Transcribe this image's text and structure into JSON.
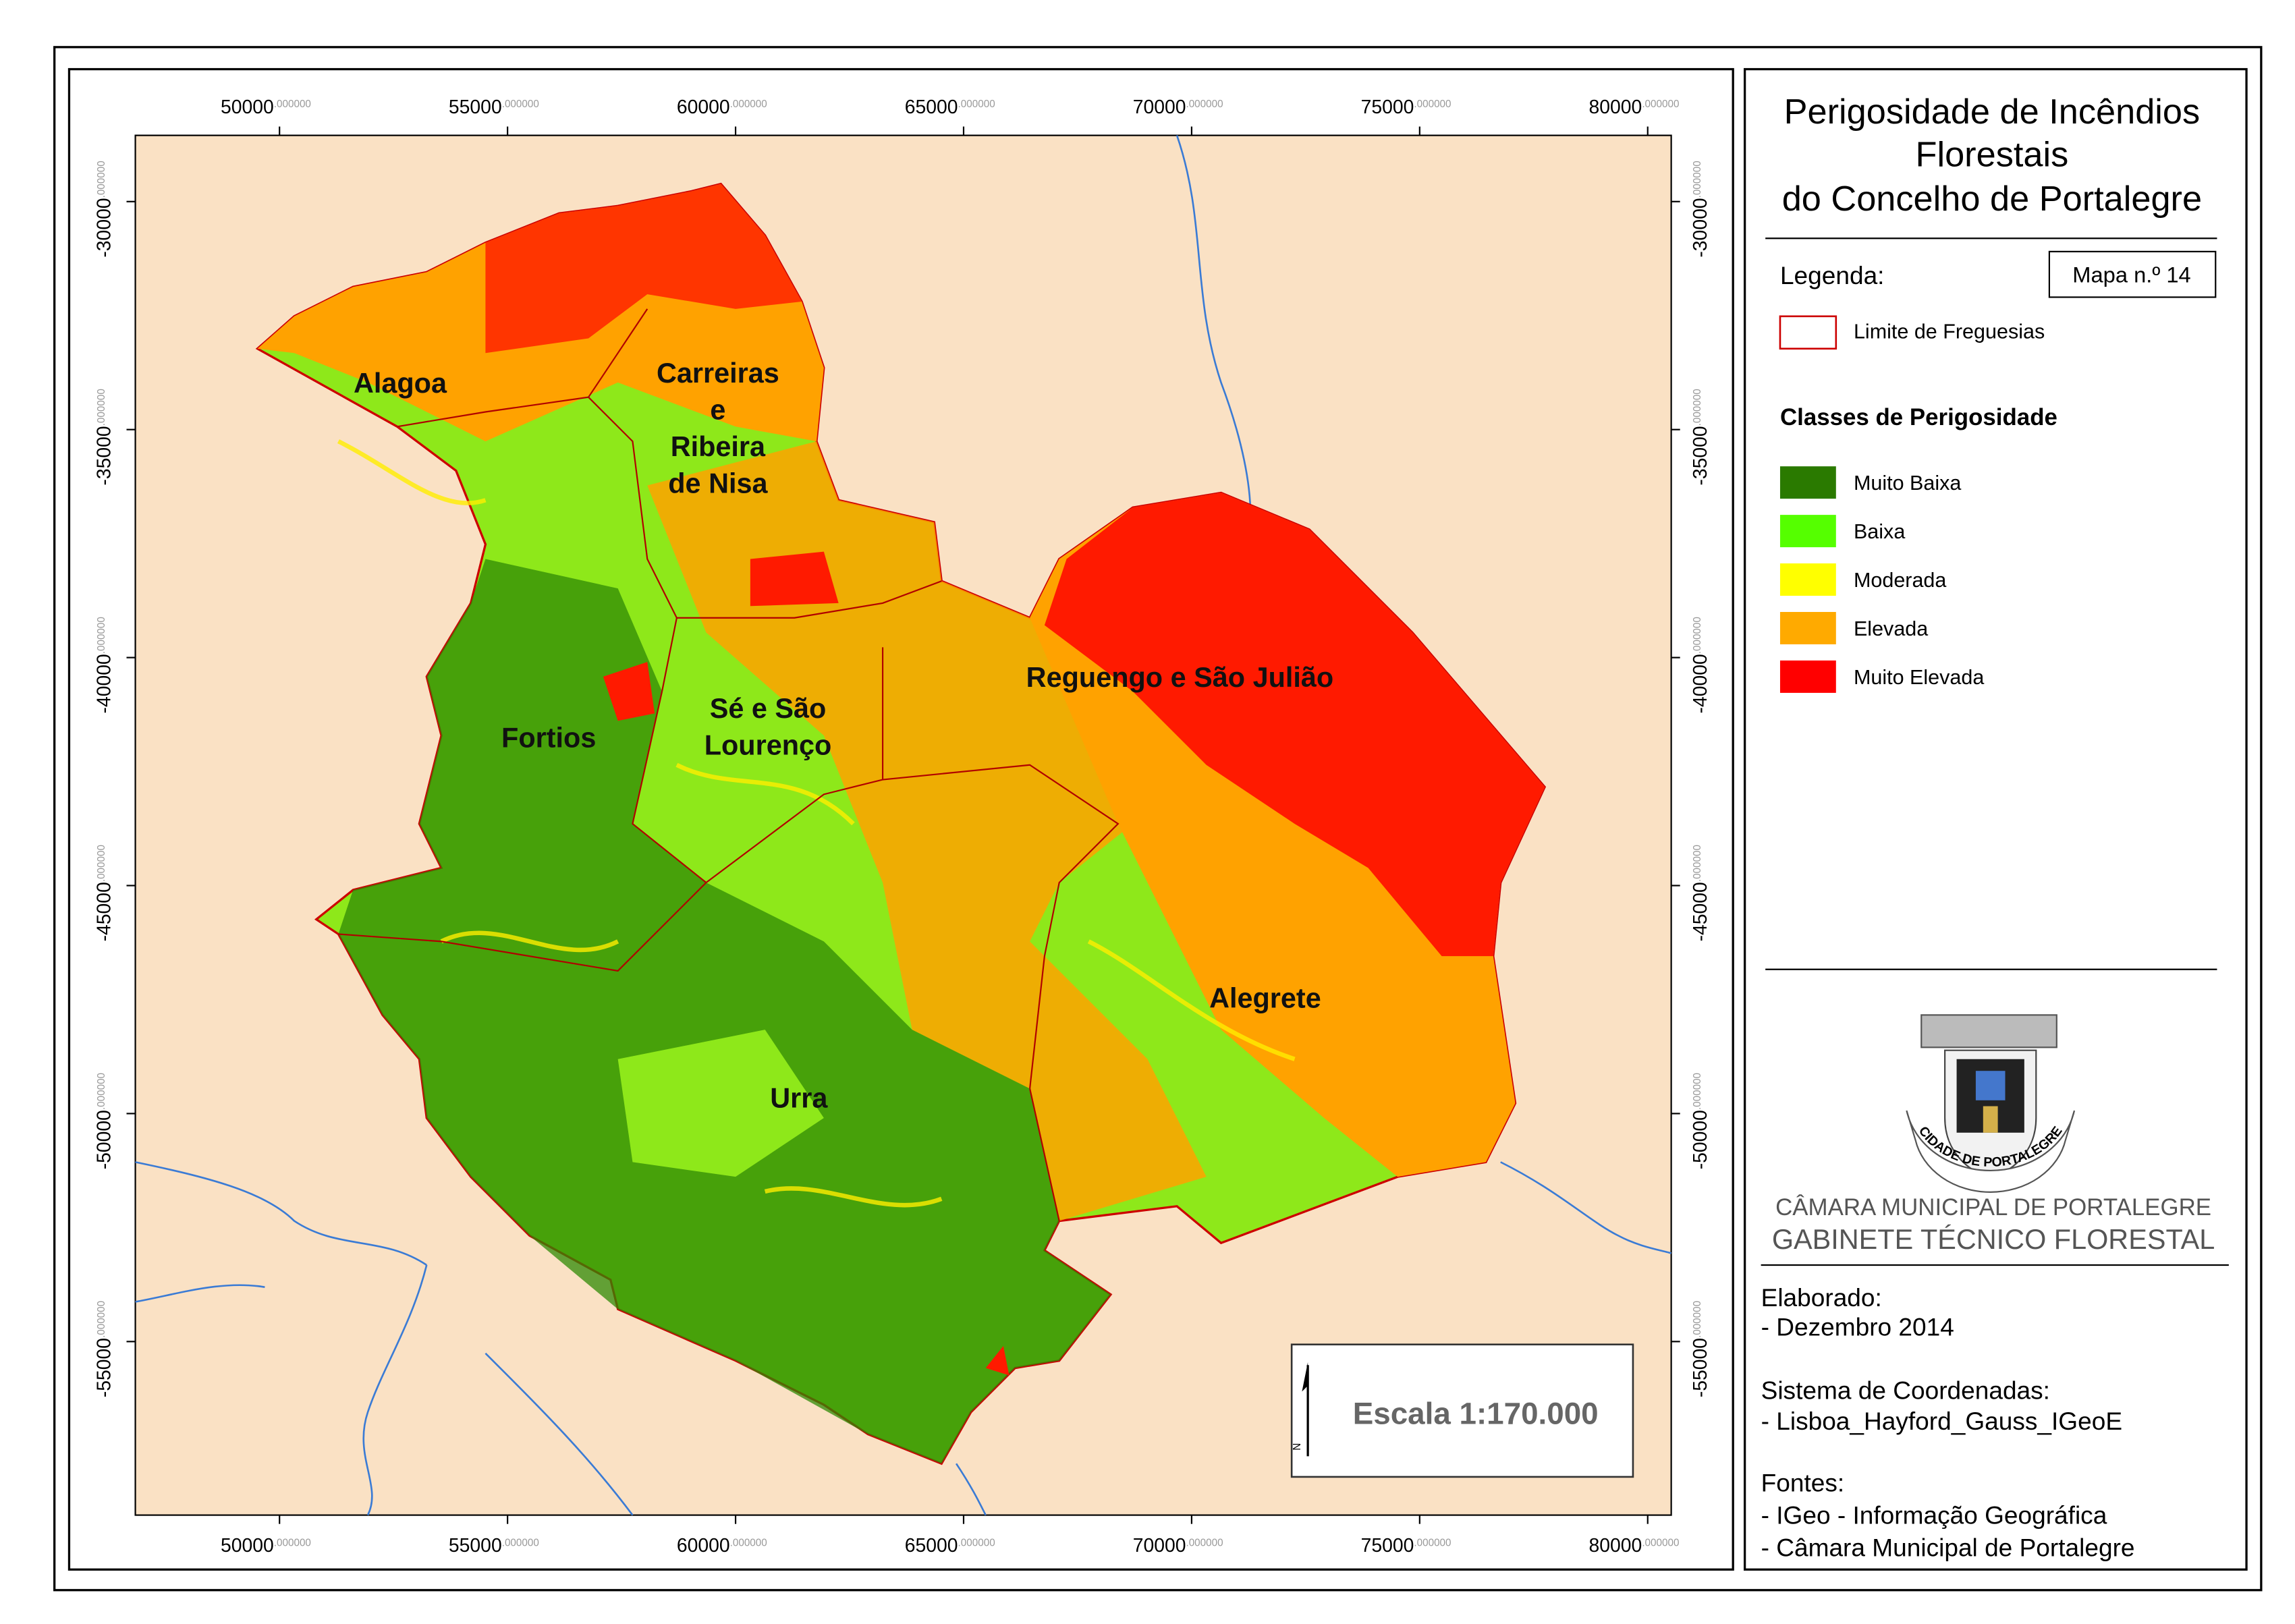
{
  "map": {
    "title": [
      "Perigosidade de Incêndios",
      "Florestais",
      "do Concelho de Portalegre"
    ],
    "legend_heading": "Legenda:",
    "map_number": "Mapa n.º 14",
    "boundary_label": "Limite de Freguesias",
    "classes_heading": "Classes de Perigosidade",
    "classes": [
      {
        "name": "Muito Baixa",
        "color": "#2a7a00"
      },
      {
        "name": "Baixa",
        "color": "#55ff00"
      },
      {
        "name": "Moderada",
        "color": "#ffff00"
      },
      {
        "name": "Elevada",
        "color": "#ffaa00"
      },
      {
        "name": "Muito Elevada",
        "color": "#ff0000"
      }
    ],
    "regions": [
      "Alagoa",
      "Carreiras",
      "e",
      "Ribeira",
      "de Nisa",
      "Reguengo e São Julião",
      "Fortios",
      "Sé e São",
      "Lourenço",
      "Alegrete",
      "Urra"
    ],
    "xlim": [
      46839,
      80516
    ],
    "ylim": [
      -58806,
      -28548
    ],
    "xticks": [
      {
        "value": 50000,
        "label": "50000",
        "suffix": ".000000"
      },
      {
        "value": 55000,
        "label": "55000",
        "suffix": ".000000"
      },
      {
        "value": 60000,
        "label": "60000",
        "suffix": ".000000"
      },
      {
        "value": 65000,
        "label": "65000",
        "suffix": ".000000"
      },
      {
        "value": 70000,
        "label": "70000",
        "suffix": ".000000"
      },
      {
        "value": 75000,
        "label": "75000",
        "suffix": ".000000"
      },
      {
        "value": 80000,
        "label": "80000",
        "suffix": ".000000"
      }
    ],
    "yticks": [
      {
        "value": -30000,
        "label": "-30000",
        "suffix": ".000000"
      },
      {
        "value": -35000,
        "label": "-35000",
        "suffix": ".000000"
      },
      {
        "value": -40000,
        "label": "-40000",
        "suffix": ".000000"
      },
      {
        "value": -45000,
        "label": "-45000",
        "suffix": ".000000"
      },
      {
        "value": -50000,
        "label": "-50000",
        "suffix": ".000000"
      },
      {
        "value": -55000,
        "label": "-55000",
        "suffix": ".000000"
      }
    ],
    "scale": "Escala 1:170.000",
    "north": "N",
    "coat_text": "CIDADE DE PORTALEGRE",
    "org": [
      "CÂMARA MUNICIPAL DE PORTALEGRE",
      "GABINETE TÉCNICO FLORESTAL"
    ],
    "credits": [
      "Elaborado:",
      "- Dezembro 2014",
      "Sistema de Coordenadas:",
      "- Lisboa_Hayford_Gauss_IGeoE",
      "Fontes:",
      "- IGeo - Informação Geográfica",
      "- Câmara Municipal de Portalegre"
    ]
  }
}
